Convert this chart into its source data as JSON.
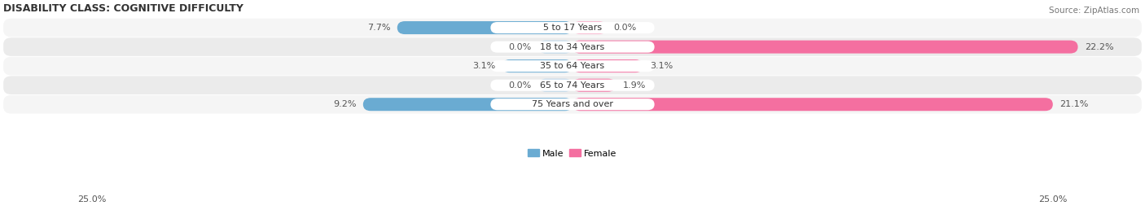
{
  "title": "DISABILITY CLASS: COGNITIVE DIFFICULTY",
  "source": "Source: ZipAtlas.com",
  "categories": [
    "5 to 17 Years",
    "18 to 34 Years",
    "35 to 64 Years",
    "65 to 74 Years",
    "75 Years and over"
  ],
  "male_values": [
    7.7,
    0.0,
    3.1,
    0.0,
    9.2
  ],
  "female_values": [
    0.0,
    22.2,
    3.1,
    1.9,
    21.1
  ],
  "male_color": "#6aabd2",
  "female_color": "#f46fa0",
  "male_color_light": "#b8d4e8",
  "female_color_light": "#f9b8cf",
  "row_bg_even": "#f5f5f5",
  "row_bg_odd": "#ebebeb",
  "xlim": 25.0,
  "title_fontsize": 9,
  "label_fontsize": 8,
  "value_fontsize": 8,
  "source_fontsize": 7.5
}
